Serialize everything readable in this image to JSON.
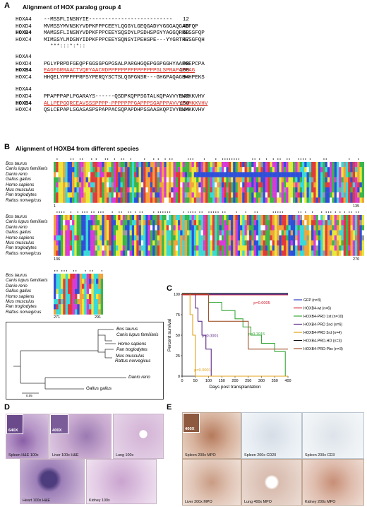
{
  "panel_a": {
    "label": "A",
    "title": "Alignment of HOX paralog group 4",
    "blocks": [
      {
        "rows": [
          {
            "name": "HOXA4",
            "seq": "--MSSFLINSNYIE--------------------------",
            "end": "12"
          },
          {
            "name": "HOXD4",
            "seq": "MVMSSYMVNSKYVDPKFPPCEEYLQGGYLGEQGADYYGGGAQGADFQP",
            "end": "48"
          },
          {
            "name": "HOXB4",
            "seq": "MAMSSFLINSNYVDPKFPPCEEYSQSDYLPSDHSPGYYAGGQRRESSFQP",
            "end": "50"
          },
          {
            "name": "HOXC4",
            "seq": "MIMSSYLMDSNYIDPKFPPCEEYSQNSYIPEHSPE---YYGRTRESGFQH",
            "end": "47"
          }
        ],
        "consensus": "  ***:::*:*::"
      },
      {
        "rows": [
          {
            "name": "HOXA4",
            "seq": "",
            "end": ""
          },
          {
            "name": "HOXD4",
            "seq": "PGLYPRPDFGEQPFGGSGPGPGSALPARGHGQEPGGPGGHYAAPGEPCPA",
            "end": "98"
          },
          {
            "name": "HOXB4",
            "seq": "EAGFGRRAACTVQRYAACRDPPPPPPPPPPPPPPPGLSPRAPAPPAG",
            "end": "100"
          },
          {
            "name": "HOXC4",
            "seq": "HHQELYPPPPPRPSYPERQYSCTSLQGPGNSR---GHGPAQAGHHHPEKS",
            "end": "94"
          }
        ],
        "consensus": ""
      },
      {
        "rows": [
          {
            "name": "HOXA4",
            "seq": "",
            "end": ""
          },
          {
            "name": "HOXD4",
            "seq": "PPAPPPAPLPGARAYS------QSDPKQPPSGTALKQPAVVYPWMKKVHV",
            "end": "142"
          },
          {
            "name": "HOXB4",
            "seq": "ALLPEPGQRCEAVSSSPPPP-PPPPPPPGAPPPSGAPPPAVVYPWMKKVHV",
            "end": "150"
          },
          {
            "name": "HOXC4",
            "seq": "QSLCEPAPLSGASASPSPAPPACSQPAPDHPSSAASKQPIVYPWMKKVHV",
            "end": "144"
          }
        ],
        "consensus": ""
      }
    ]
  },
  "panel_b": {
    "label": "B",
    "title": "Alignment of HOXB4 from different species",
    "species": [
      "Bos taurus",
      "Canis lupus familiaris",
      "Danio rerio",
      "Gallus gallus",
      "Homo sapiens",
      "Mus musculus",
      "Pan troglodytes",
      "Rattus norvegicus"
    ],
    "block1": {
      "start": "1",
      "end": "135"
    },
    "block2": {
      "start": "136",
      "end": "270"
    },
    "block3": {
      "start": "271",
      "end": "291"
    }
  },
  "tree": {
    "leaves": [
      "Bos taurus",
      "Canis lupus familiaris",
      "Homo sapiens",
      "Pan troglodytes",
      "Mus musculus",
      "Rattus norvegicus",
      "Danio rerio",
      "Gallus gallus"
    ],
    "scale": "0.05"
  },
  "panel_c": {
    "label": "C",
    "chart_data": {
      "type": "line",
      "xlabel": "Days post transplantation",
      "ylabel": "Percent survival",
      "xlim": [
        0,
        400
      ],
      "ylim": [
        0,
        100
      ],
      "xticks": [
        0,
        50,
        100,
        150,
        200,
        250,
        300,
        350,
        400
      ],
      "yticks": [
        0,
        25,
        50,
        75,
        100
      ],
      "annotations": [
        "p=0.0005",
        "p=0.1915",
        "p<0.0001",
        "p=0.0001"
      ],
      "series": [
        {
          "name": "GFP (n=3)",
          "color": "#2b3fbf",
          "x": [
            0,
            400
          ],
          "y": [
            100,
            100
          ]
        },
        {
          "name": "HOXB4-wt (n=6)",
          "color": "#d01a2a",
          "x": [
            0,
            400
          ],
          "y": [
            100,
            100
          ]
        },
        {
          "name": "HOXB4-PRD 1st (n=10)",
          "color": "#3aa83a",
          "x": [
            0,
            100,
            100,
            150,
            150,
            200,
            200,
            230,
            230,
            260,
            260,
            300,
            300,
            350,
            350,
            390,
            390,
            400
          ],
          "y": [
            100,
            100,
            90,
            90,
            80,
            80,
            70,
            70,
            60,
            60,
            50,
            50,
            40,
            40,
            30,
            30,
            0,
            0
          ]
        },
        {
          "name": "HOXB4-PRD 2nd (n=6)",
          "color": "#5b2a86",
          "x": [
            0,
            50,
            50,
            60,
            60,
            75,
            75,
            90,
            90,
            110,
            110,
            400
          ],
          "y": [
            100,
            100,
            83,
            83,
            67,
            67,
            50,
            50,
            33,
            33,
            0,
            0
          ]
        },
        {
          "name": "HOXB4-PRD 3rd (n=4)",
          "color": "#e0a21a",
          "x": [
            0,
            30,
            30,
            40,
            40,
            50,
            50,
            400
          ],
          "y": [
            100,
            100,
            75,
            75,
            50,
            50,
            0,
            0
          ]
        },
        {
          "name": "HOXB4-PRD-HD (n=3)",
          "color": "#111111",
          "x": [
            0,
            400
          ],
          "y": [
            100,
            100
          ]
        },
        {
          "name": "HOXB4-PRD-Pbx (n=3)",
          "color": "#a0522d",
          "x": [
            0,
            100,
            100,
            250,
            250,
            400
          ],
          "y": [
            100,
            100,
            67,
            67,
            33,
            33
          ]
        }
      ]
    }
  },
  "panel_d": {
    "label": "D",
    "images": [
      {
        "caption": "Spleen  H&E  100x",
        "inset": "640X"
      },
      {
        "caption": "Liver  100x  H&E",
        "inset": "400X"
      },
      {
        "caption": "Lung  100x",
        "inset": ""
      },
      {
        "caption": "Heart  100x  H&E",
        "inset": ""
      },
      {
        "caption": "Kidney  100x",
        "inset": ""
      }
    ]
  },
  "panel_e": {
    "label": "E",
    "images": [
      {
        "caption": "Spleen  200x  MPO",
        "inset": "400X"
      },
      {
        "caption": "Spleen  200x  CD20",
        "inset": ""
      },
      {
        "caption": "Spleen  200x  CD3",
        "inset": ""
      },
      {
        "caption": "Liver  200x  MPO",
        "inset": ""
      },
      {
        "caption": "Lung  400x  MPO",
        "inset": ""
      },
      {
        "caption": "Kidney  200x  MPO",
        "inset": ""
      }
    ]
  }
}
